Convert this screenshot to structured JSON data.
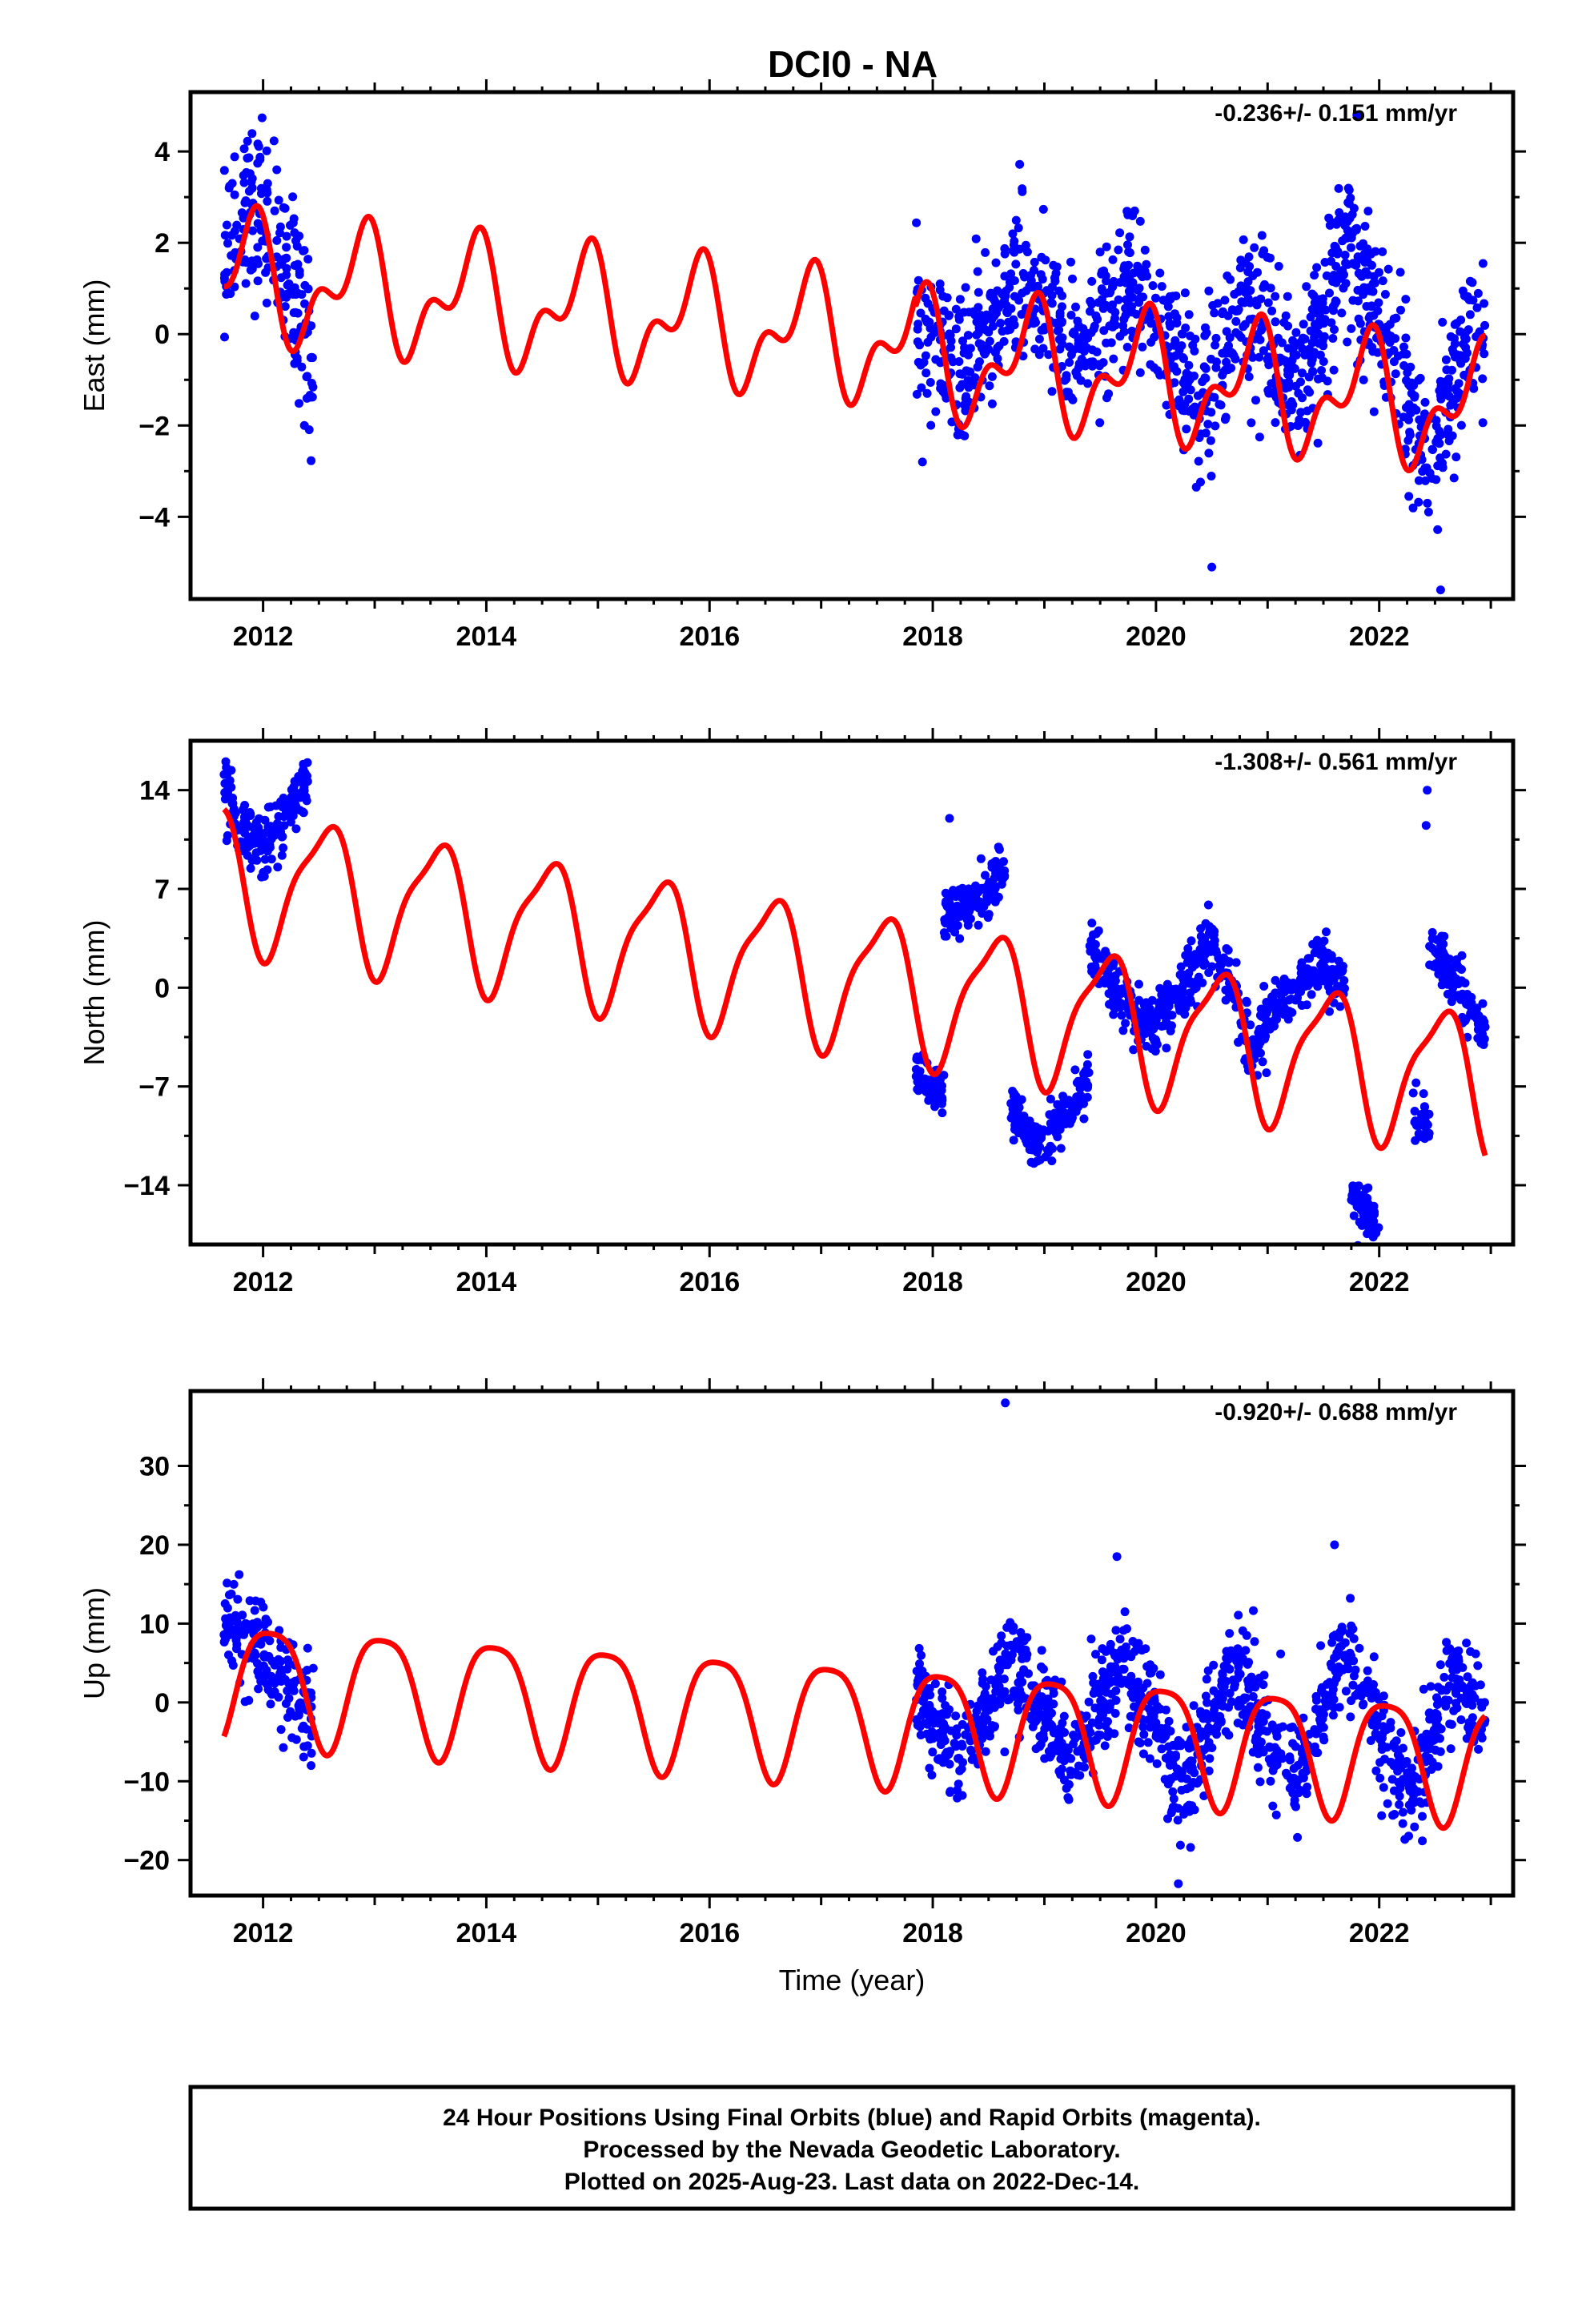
{
  "title": "DCI0 - NA",
  "chart_data": [
    {
      "type": "scatter",
      "ylabel": "East (mm)",
      "xlabel": "",
      "rate_label": "-0.236+/- 0.151 mm/yr",
      "xlim": [
        2011.35,
        2023.2
      ],
      "ylim": [
        -5.8,
        5.3
      ],
      "x_ticks": [
        2012,
        2014,
        2016,
        2018,
        2020,
        2022
      ],
      "y_ticks": [
        -4,
        -2,
        0,
        2,
        4
      ],
      "y_tick_labels": [
        "−4",
        "−2",
        "0",
        "2",
        "4"
      ],
      "series": [
        {
          "type": "scatter",
          "color": "#0000ff",
          "segments": [
            {
              "x0": 2011.65,
              "x1": 2012.45,
              "trend": [
                [
                  2011.65,
                  1.5
                ],
                [
                  2011.9,
                  2.8
                ],
                [
                  2012.1,
                  2.4
                ],
                [
                  2012.3,
                  1.0
                ],
                [
                  2012.45,
                  -0.8
                ]
              ],
              "spread": 1.3
            },
            {
              "x0": 2017.85,
              "x1": 2022.95,
              "trend": [
                [
                  2017.85,
                  0.2
                ],
                [
                  2018.3,
                  -0.8
                ],
                [
                  2018.8,
                  1.2
                ],
                [
                  2019.3,
                  -0.5
                ],
                [
                  2019.8,
                  0.9
                ],
                [
                  2020.4,
                  -1.5
                ],
                [
                  2020.8,
                  0.6
                ],
                [
                  2021.3,
                  -1.2
                ],
                [
                  2021.7,
                  1.9
                ],
                [
                  2022.0,
                  0.2
                ],
                [
                  2022.5,
                  -2.8
                ],
                [
                  2022.8,
                  0.3
                ],
                [
                  2022.95,
                  -0.3
                ]
              ],
              "spread": 1.1
            }
          ],
          "outliers": [
            [
              2021.8,
              4.8
            ],
            [
              2020.5,
              -5.1
            ],
            [
              2022.55,
              -5.6
            ]
          ]
        },
        {
          "type": "line",
          "color": "#ff0000",
          "model": {
            "t0": 2011.65,
            "t1": 2022.95,
            "offset": 1.25,
            "rate": -0.236,
            "a1": 1.1,
            "phase1": 0.62,
            "a2": 0.7,
            "phase2": 0.85,
            "step_time": 2017.85,
            "step": -0.25
          }
        }
      ]
    },
    {
      "type": "scatter",
      "ylabel": "North (mm)",
      "xlabel": "",
      "rate_label": "-1.308+/- 0.561 mm/yr",
      "xlim": [
        2011.35,
        2023.2
      ],
      "ylim": [
        -18.2,
        17.5
      ],
      "x_ticks": [
        2012,
        2014,
        2016,
        2018,
        2020,
        2022
      ],
      "y_ticks": [
        -14,
        -7,
        0,
        7,
        14
      ],
      "y_tick_labels": [
        "−14",
        "−7",
        "0",
        "7",
        "14"
      ],
      "series": [
        {
          "type": "scatter",
          "color": "#0000ff",
          "segments": [
            {
              "x0": 2011.65,
              "x1": 2012.4,
              "trend": [
                [
                  2011.65,
                  14.5
                ],
                [
                  2011.8,
                  11.0
                ],
                [
                  2012.0,
                  10.0
                ],
                [
                  2012.2,
                  12.5
                ],
                [
                  2012.4,
                  14.5
                ]
              ],
              "spread": 1.4
            },
            {
              "x0": 2017.85,
              "x1": 2018.1,
              "trend": [
                [
                  2017.85,
                  -6.0
                ],
                [
                  2018.1,
                  -8.0
                ]
              ],
              "spread": 1.2
            },
            {
              "x0": 2018.1,
              "x1": 2018.65,
              "trend": [
                [
                  2018.1,
                  5.0
                ],
                [
                  2018.4,
                  6.5
                ],
                [
                  2018.65,
                  8.0
                ]
              ],
              "spread": 1.2
            },
            {
              "x0": 2018.7,
              "x1": 2019.4,
              "trend": [
                [
                  2018.7,
                  -8.0
                ],
                [
                  2018.9,
                  -11.5
                ],
                [
                  2019.1,
                  -10.0
                ],
                [
                  2019.4,
                  -6.5
                ]
              ],
              "spread": 1.3
            },
            {
              "x0": 2019.4,
              "x1": 2021.7,
              "trend": [
                [
                  2019.4,
                  3.5
                ],
                [
                  2019.7,
                  -1.0
                ],
                [
                  2020.0,
                  -3.0
                ],
                [
                  2020.5,
                  3.5
                ],
                [
                  2020.85,
                  -4.5
                ],
                [
                  2021.1,
                  -1.0
                ],
                [
                  2021.5,
                  1.5
                ],
                [
                  2021.7,
                  0.0
                ]
              ],
              "spread": 1.4
            },
            {
              "x0": 2021.75,
              "x1": 2022.0,
              "trend": [
                [
                  2021.75,
                  -14.5
                ],
                [
                  2022.0,
                  -16.5
                ]
              ],
              "spread": 1.3
            },
            {
              "x0": 2022.3,
              "x1": 2022.45,
              "trend": [
                [
                  2022.3,
                  -9.0
                ],
                [
                  2022.45,
                  -10.0
                ]
              ],
              "spread": 1.2
            },
            {
              "x0": 2022.45,
              "x1": 2022.95,
              "trend": [
                [
                  2022.45,
                  3.0
                ],
                [
                  2022.7,
                  0.0
                ],
                [
                  2022.95,
                  -3.0
                ]
              ],
              "spread": 1.4
            }
          ],
          "outliers": [
            [
              2022.43,
              14.0
            ],
            [
              2022.42,
              11.5
            ],
            [
              2018.15,
              12.0
            ]
          ]
        },
        {
          "type": "line",
          "color": "#ff0000",
          "model": {
            "t0": 2011.65,
            "t1": 2022.95,
            "offset": 8.0,
            "rate": -1.308,
            "a1": 4.8,
            "phase1": 0.3,
            "a2": 1.3,
            "phase2": 0.1,
            "step_time": 2017.85,
            "step": 0.0
          }
        }
      ]
    },
    {
      "type": "scatter",
      "ylabel": "Up (mm)",
      "xlabel": "Time (year)",
      "rate_label": "-0.920+/- 0.688 mm/yr",
      "xlim": [
        2011.35,
        2023.2
      ],
      "ylim": [
        -24.5,
        39.5
      ],
      "x_ticks": [
        2012,
        2014,
        2016,
        2018,
        2020,
        2022
      ],
      "y_ticks": [
        -20,
        -10,
        0,
        10,
        20,
        30
      ],
      "y_tick_labels": [
        "−20",
        "−10",
        "0",
        "10",
        "20",
        "30"
      ],
      "series": [
        {
          "type": "scatter",
          "color": "#0000ff",
          "segments": [
            {
              "x0": 2011.65,
              "x1": 2012.45,
              "trend": [
                [
                  2011.65,
                  10.0
                ],
                [
                  2011.9,
                  8.0
                ],
                [
                  2012.2,
                  3.0
                ],
                [
                  2012.45,
                  -2.0
                ]
              ],
              "spread": 4.0
            },
            {
              "x0": 2017.85,
              "x1": 2022.95,
              "trend": [
                [
                  2017.85,
                  2.0
                ],
                [
                  2018.25,
                  -8.0
                ],
                [
                  2018.7,
                  6.0
                ],
                [
                  2019.25,
                  -8.0
                ],
                [
                  2019.7,
                  5.0
                ],
                [
                  2020.25,
                  -11.0
                ],
                [
                  2020.7,
                  4.0
                ],
                [
                  2021.25,
                  -10.0
                ],
                [
                  2021.7,
                  7.0
                ],
                [
                  2022.25,
                  -12.0
                ],
                [
                  2022.7,
                  4.0
                ],
                [
                  2022.95,
                  -3.0
                ]
              ],
              "spread": 4.5
            }
          ],
          "outliers": [
            [
              2018.65,
              38.0
            ],
            [
              2019.65,
              18.5
            ],
            [
              2021.6,
              20.0
            ],
            [
              2020.2,
              -23.0
            ]
          ]
        },
        {
          "type": "line",
          "color": "#ff0000",
          "model": {
            "t0": 2011.65,
            "t1": 2022.95,
            "offset": 3.2,
            "rate": -0.92,
            "a1": 7.5,
            "phase1": 0.82,
            "a2": 1.6,
            "phase2": 0.2,
            "step_time": 2017.85,
            "step": 0.0
          }
        }
      ]
    }
  ],
  "footer": {
    "line1": "24 Hour Positions Using Final Orbits (blue) and Rapid Orbits (magenta).",
    "line2": "Processed by the Nevada Geodetic Laboratory.",
    "line3": "Plotted on 2025-Aug-23. Last data on 2022-Dec-14."
  }
}
